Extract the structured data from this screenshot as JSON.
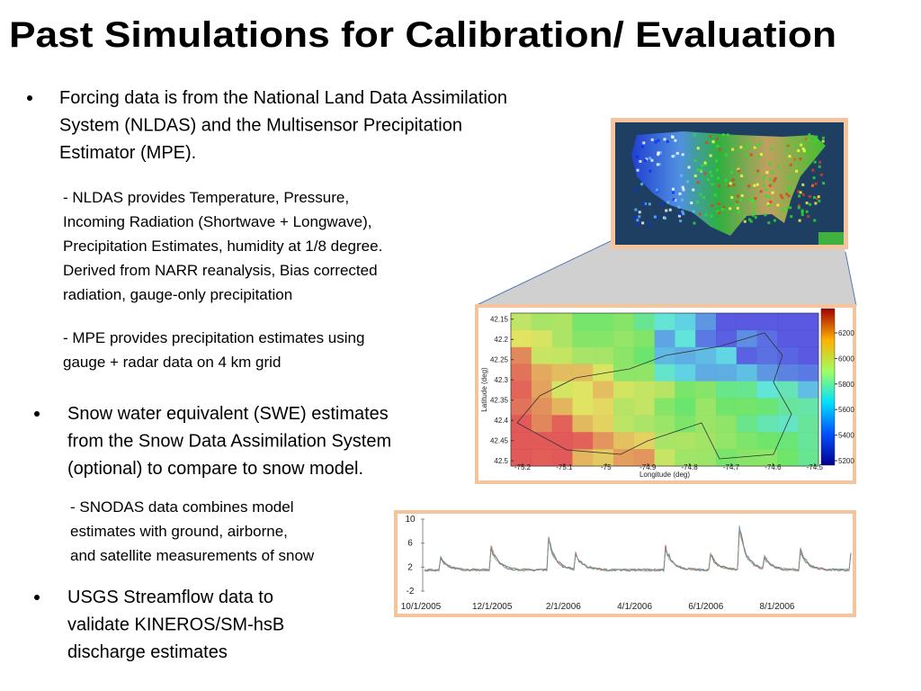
{
  "title": "Past Simulations for Calibration/ Evaluation",
  "bullets": [
    {
      "lines": [
        "Forcing data is from the National Land Data Assimilation",
        "System (NLDAS) and the Multisensor Precipitation",
        "Estimator (MPE)."
      ],
      "notes": [
        [
          "- NLDAS provides Temperature, Pressure,",
          "Incoming Radiation (Shortwave + Longwave),",
          "Precipitation Estimates, humidity at 1/8 degree.",
          "Derived from NARR reanalysis, Bias corrected",
          "radiation, gauge-only precipitation"
        ],
        [
          "- MPE provides precipitation estimates using",
          "gauge + radar data on 4 km grid"
        ]
      ]
    },
    {
      "lines": [
        "Snow water equivalent (SWE) estimates",
        "from the Snow Data Assimilation System",
        "(optional) to compare to snow model."
      ],
      "notes": [
        [
          "- SNODAS data combines model",
          "estimates with ground, airborne,",
          "and satellite measurements of snow"
        ]
      ]
    },
    {
      "lines": [
        "USGS Streamflow data to",
        "validate KINEROS/SM-hsB",
        "discharge estimates"
      ],
      "notes": []
    }
  ],
  "heatmap": {
    "xlabel": "Longitude (deg)",
    "ylabel": "Latitude (deg)",
    "xlim": [
      -75.228,
      -74.491
    ],
    "ylim": [
      42.135,
      42.513
    ],
    "xticks": [
      -75.2,
      -75.1,
      -75,
      -74.9,
      -74.8,
      -74.7,
      -74.6,
      -74.5
    ],
    "yticks": [
      42.15,
      42.2,
      42.25,
      42.3,
      42.35,
      42.4,
      42.45,
      42.5
    ],
    "clim": [
      5165,
      6390
    ],
    "cticks": [
      5200,
      5400,
      5600,
      5800,
      6000,
      6200
    ]
  },
  "streamflow": {
    "ylim": [
      -2,
      10
    ],
    "yticks": [
      -2,
      2,
      6,
      10
    ],
    "dates": [
      "10/1/2005",
      "12/1/2005",
      "2/1/2006",
      "4/1/2006",
      "6/1/2006",
      "8/1/2006"
    ]
  }
}
